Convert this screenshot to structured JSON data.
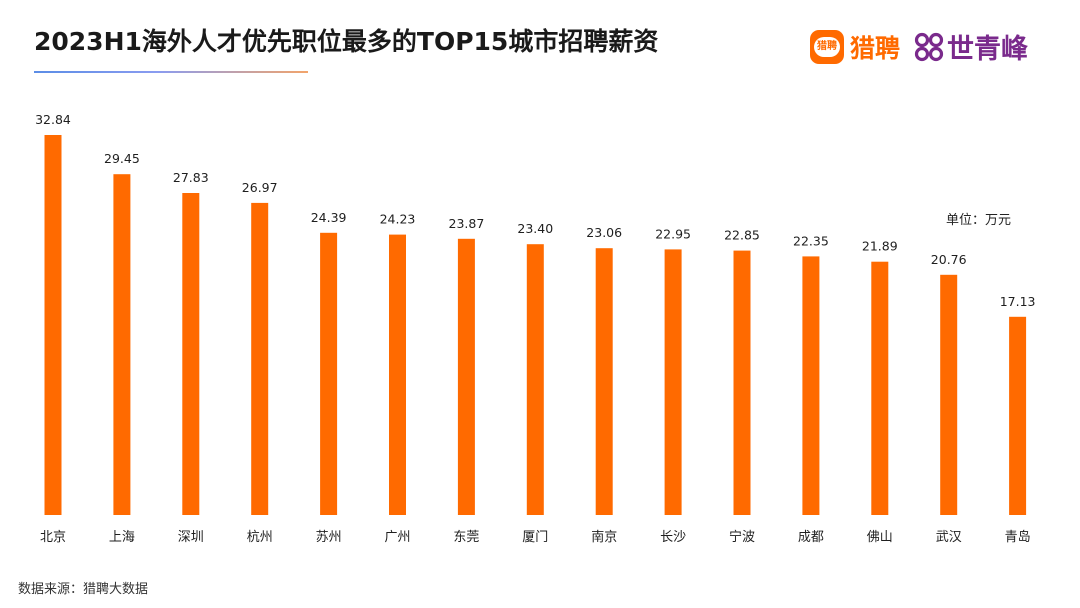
{
  "header": {
    "title": "2023H1海外人才优先职位最多的TOP15城市招聘薪资"
  },
  "logos": {
    "liepin_badge_text": "猎聘",
    "liepin_name": "猎聘",
    "sqf_name": "世青峰"
  },
  "colors": {
    "bar": "#ff6a00",
    "liepin_orange": "#ff6a00",
    "sqf_purple": "#7a2a8c"
  },
  "unit_label": "单位：万元",
  "source_note": "数据来源：猎聘大数据",
  "chart_data": {
    "type": "bar",
    "title": "2023H1海外人才优先职位最多的TOP15城市招聘薪资",
    "xlabel": "",
    "ylabel": "单位：万元",
    "categories": [
      "北京",
      "上海",
      "深圳",
      "杭州",
      "苏州",
      "广州",
      "东莞",
      "厦门",
      "南京",
      "长沙",
      "宁波",
      "成都",
      "佛山",
      "武汉",
      "青岛"
    ],
    "values": [
      32.84,
      29.45,
      27.83,
      26.97,
      24.39,
      24.23,
      23.87,
      23.4,
      23.06,
      22.95,
      22.85,
      22.35,
      21.89,
      20.76,
      17.13
    ],
    "value_labels": [
      "32.84",
      "29.45",
      "27.83",
      "26.97",
      "24.39",
      "24.23",
      "23.87",
      "23.40",
      "23.06",
      "22.95",
      "22.85",
      "22.35",
      "21.89",
      "20.76",
      "17.13"
    ],
    "ylim": [
      0,
      32.84
    ],
    "grid": false,
    "legend": "none"
  }
}
